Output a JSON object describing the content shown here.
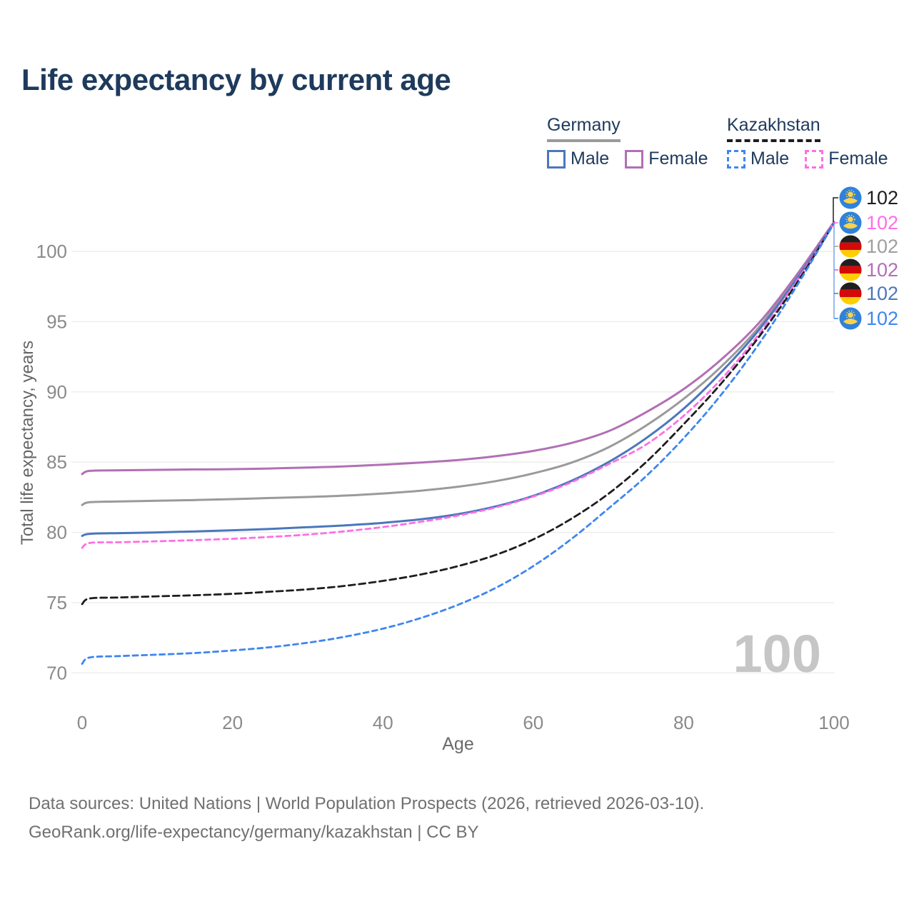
{
  "page": {
    "title": "Life expectancy by current age"
  },
  "legend": {
    "groups": [
      {
        "label": "Germany",
        "underline_color": "#9a9a9a",
        "underline_style": "solid",
        "items": [
          {
            "label": "Male",
            "color": "#4b77bc",
            "style": "solid"
          },
          {
            "label": "Female",
            "color": "#b26fb5",
            "style": "solid"
          }
        ]
      },
      {
        "label": "Kazakhstan",
        "underline_color": "#1d1d1d",
        "underline_style": "dashed",
        "items": [
          {
            "label": "Male",
            "color": "#3e86f0",
            "style": "dashed"
          },
          {
            "label": "Female",
            "color": "#ff6ee4",
            "style": "dashed"
          }
        ]
      }
    ]
  },
  "chart_data": {
    "type": "line",
    "title": "Life expectancy by current age",
    "xlabel": "Age",
    "ylabel": "Total life expectancy, years",
    "xlim": [
      0,
      100
    ],
    "ylim": [
      70,
      103
    ],
    "xticks": [
      0,
      20,
      40,
      60,
      80,
      100
    ],
    "yticks": [
      70,
      75,
      80,
      85,
      90,
      95,
      100
    ],
    "grid": "horizontal",
    "legend_position": "top-right",
    "x": [
      0,
      1,
      5,
      10,
      15,
      20,
      25,
      30,
      35,
      40,
      45,
      50,
      55,
      60,
      65,
      70,
      75,
      80,
      85,
      90,
      95,
      100
    ],
    "series": [
      {
        "key": "germany-overall",
        "name": "Germany (both sexes)",
        "country": "Germany",
        "sex": "all",
        "color": "#9a9a9a",
        "dash": false,
        "values": [
          81.95,
          82.15,
          82.2,
          82.25,
          82.3,
          82.37,
          82.45,
          82.52,
          82.62,
          82.77,
          82.97,
          83.25,
          83.65,
          84.2,
          84.95,
          86.05,
          87.6,
          89.5,
          91.8,
          94.6,
          98.15,
          102.05
        ]
      },
      {
        "key": "germany-female",
        "name": "Germany Female",
        "country": "Germany",
        "sex": "female",
        "color": "#b26fb5",
        "dash": false,
        "values": [
          84.15,
          84.38,
          84.42,
          84.45,
          84.48,
          84.5,
          84.55,
          84.62,
          84.7,
          84.82,
          84.97,
          85.15,
          85.42,
          85.8,
          86.35,
          87.2,
          88.55,
          90.2,
          92.3,
          94.9,
          98.3,
          102.1
        ]
      },
      {
        "key": "germany-male",
        "name": "Germany Male",
        "country": "Germany",
        "sex": "male",
        "color": "#4b77bc",
        "dash": false,
        "values": [
          79.75,
          79.9,
          79.95,
          80.0,
          80.07,
          80.15,
          80.25,
          80.37,
          80.5,
          80.68,
          80.93,
          81.3,
          81.85,
          82.6,
          83.65,
          85.0,
          86.7,
          88.8,
          91.4,
          94.4,
          98.0,
          102.0
        ]
      },
      {
        "key": "kazakhstan-female",
        "name": "Kazakhstan Female",
        "country": "Kazakhstan",
        "sex": "female",
        "color": "#ff6ee4",
        "dash": true,
        "values": [
          78.9,
          79.25,
          79.3,
          79.37,
          79.45,
          79.55,
          79.68,
          79.85,
          80.08,
          80.38,
          80.75,
          81.2,
          81.78,
          82.55,
          83.55,
          84.85,
          86.25,
          88.3,
          90.9,
          94.1,
          97.85,
          102.0
        ]
      },
      {
        "key": "kazakhstan-overall",
        "name": "Kazakhstan (both sexes)",
        "country": "Kazakhstan",
        "sex": "all",
        "color": "#1d1d1d",
        "dash": true,
        "values": [
          74.9,
          75.3,
          75.37,
          75.45,
          75.53,
          75.63,
          75.78,
          75.95,
          76.2,
          76.55,
          77.0,
          77.6,
          78.4,
          79.5,
          80.95,
          82.75,
          85.0,
          87.7,
          90.6,
          93.9,
          97.7,
          102.0
        ]
      },
      {
        "key": "kazakhstan-male",
        "name": "Kazakhstan Male",
        "country": "Kazakhstan",
        "sex": "male",
        "color": "#3e86f0",
        "dash": true,
        "values": [
          70.65,
          71.1,
          71.2,
          71.3,
          71.42,
          71.6,
          71.83,
          72.15,
          72.58,
          73.15,
          73.9,
          74.85,
          76.05,
          77.6,
          79.5,
          81.7,
          84.0,
          86.7,
          89.8,
          93.4,
          97.5,
          102.0
        ]
      }
    ],
    "end_labels": [
      {
        "flag": "kazakhstan",
        "series": "kazakhstan-overall",
        "value": "102",
        "color": "#1d1d1d"
      },
      {
        "flag": "kazakhstan",
        "series": "kazakhstan-female",
        "value": "102",
        "color": "#ff6ee4"
      },
      {
        "flag": "germany",
        "series": "germany-overall",
        "value": "102",
        "color": "#9e9e9e"
      },
      {
        "flag": "germany",
        "series": "germany-female",
        "value": "102",
        "color": "#b26fb5"
      },
      {
        "flag": "germany",
        "series": "germany-male",
        "value": "102",
        "color": "#4b77bc"
      },
      {
        "flag": "kazakhstan",
        "series": "kazakhstan-male",
        "value": "102",
        "color": "#3e86f0"
      }
    ],
    "annotations": {
      "age_counter": "100"
    }
  },
  "footer": {
    "line1": "Data sources: United Nations | World Population Prospects (2026, retrieved 2026-03-10).",
    "line2": "GeoRank.org/life-expectancy/germany/kazakhstan | CC BY"
  }
}
